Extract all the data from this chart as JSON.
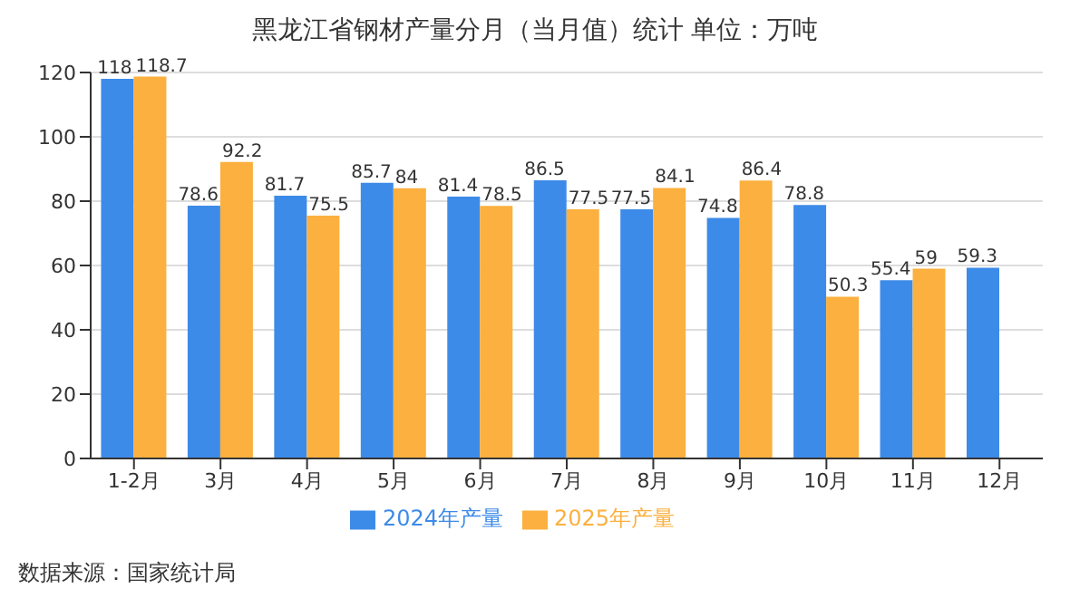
{
  "chart_data": {
    "type": "bar",
    "title": "黑龙江省钢材产量分月（当月值）统计 单位：万吨",
    "categories": [
      "1-2月",
      "3月",
      "4月",
      "5月",
      "6月",
      "7月",
      "8月",
      "9月",
      "10月",
      "11月",
      "12月"
    ],
    "series": [
      {
        "name": "2024年产量",
        "color": "#3d8be8",
        "values": [
          118,
          78.6,
          81.7,
          85.7,
          81.4,
          86.5,
          77.5,
          74.8,
          78.8,
          55.4,
          59.3
        ]
      },
      {
        "name": "2025年产量",
        "color": "#fbb03f",
        "values": [
          118.7,
          92.2,
          75.5,
          84,
          78.5,
          77.5,
          84.1,
          86.4,
          50.3,
          59,
          null
        ]
      }
    ],
    "ylim": [
      0,
      120
    ],
    "yticks": [
      0,
      20,
      40,
      60,
      80,
      100,
      120
    ],
    "grid": "y",
    "legend": "bottom",
    "data_labels": true,
    "annotations": [
      "数据来源：国家统计局"
    ]
  }
}
